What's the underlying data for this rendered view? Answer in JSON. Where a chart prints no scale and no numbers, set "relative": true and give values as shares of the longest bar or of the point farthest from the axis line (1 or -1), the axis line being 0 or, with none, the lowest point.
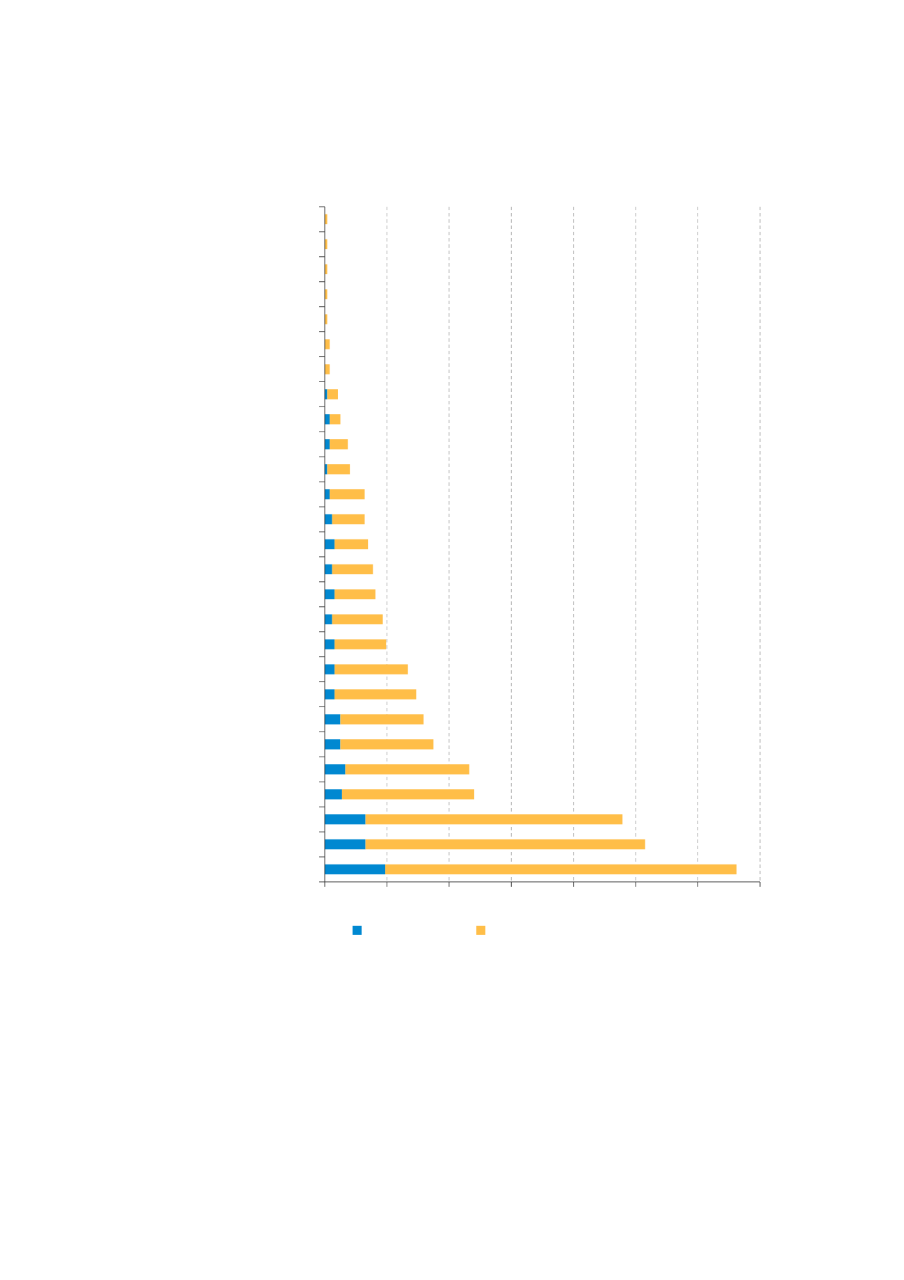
{
  "chart_data": {
    "type": "bar",
    "orientation": "horizontal",
    "stacked": true,
    "relative": true,
    "grid": "x",
    "categories": [
      null,
      null,
      null,
      null,
      null,
      null,
      null,
      null,
      null,
      null,
      null,
      null,
      null,
      null,
      null,
      null,
      null,
      null,
      null,
      null,
      null,
      null,
      null,
      null,
      null,
      null,
      null
    ],
    "series": [
      {
        "color": "#0088d1",
        "values": [
          0,
          0,
          0,
          0,
          0,
          0,
          0,
          0.006,
          0.012,
          0.012,
          0.006,
          0.012,
          0.018,
          0.024,
          0.018,
          0.024,
          0.018,
          0.024,
          0.024,
          0.024,
          0.038,
          0.038,
          0.05,
          0.042,
          0.099,
          0.099,
          0.147
        ]
      },
      {
        "color": "#ffbe48",
        "values": [
          0.006,
          0.006,
          0.006,
          0.006,
          0.006,
          0.012,
          0.012,
          0.026,
          0.026,
          0.044,
          0.055,
          0.085,
          0.079,
          0.081,
          0.099,
          0.099,
          0.123,
          0.125,
          0.178,
          0.198,
          0.202,
          0.226,
          0.301,
          0.321,
          0.624,
          0.679,
          0.853
        ]
      }
    ]
  }
}
